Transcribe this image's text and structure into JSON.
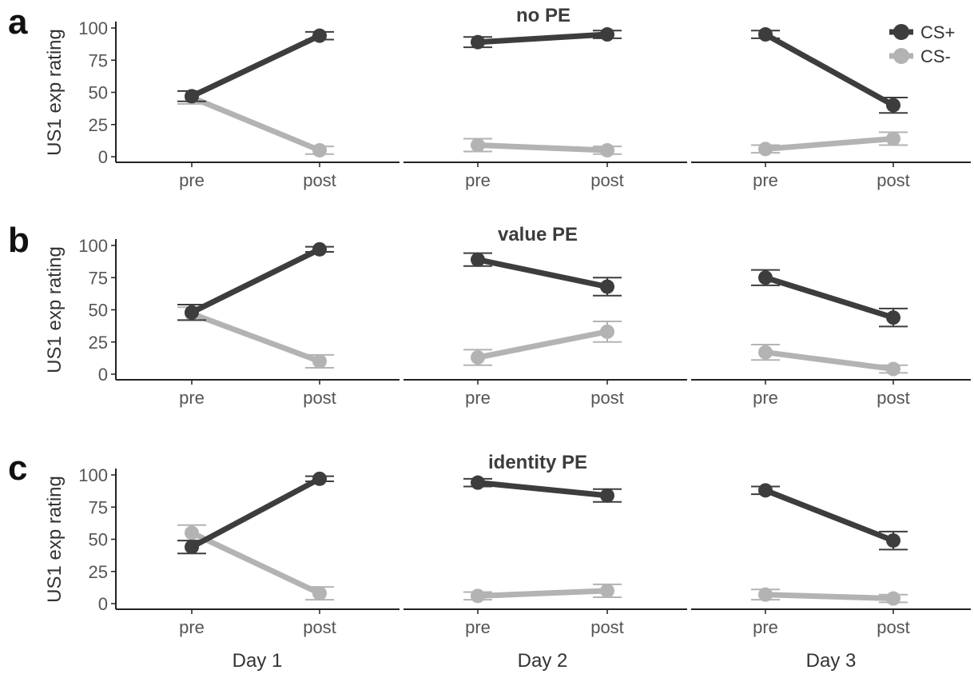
{
  "chart_data": {
    "type": "line",
    "ylabel": "US1 exp rating",
    "ylim": [
      0,
      100
    ],
    "yticks": [
      "0",
      "25",
      "50",
      "75",
      "100"
    ],
    "x": [
      "pre",
      "post"
    ],
    "days": [
      "Day 1",
      "Day 2",
      "Day 3"
    ],
    "legend": {
      "position": "top-right",
      "entries": [
        {
          "name": "CS+",
          "color": "#3d3d3d"
        },
        {
          "name": "CS-",
          "color": "#b3b3b3"
        }
      ]
    },
    "rows": [
      {
        "letter": "a",
        "title": "no PE",
        "panels": [
          {
            "day": "Day 1",
            "series": [
              {
                "name": "CS+",
                "values": [
                  47,
                  94
                ],
                "err": [
                  4,
                  3
                ]
              },
              {
                "name": "CS-",
                "values": [
                  46,
                  5
                ],
                "err": [
                  5,
                  3
                ]
              }
            ]
          },
          {
            "day": "Day 2",
            "series": [
              {
                "name": "CS+",
                "values": [
                  89,
                  95
                ],
                "err": [
                  4,
                  3
                ]
              },
              {
                "name": "CS-",
                "values": [
                  9,
                  5
                ],
                "err": [
                  5,
                  3
                ]
              }
            ]
          },
          {
            "day": "Day 3",
            "series": [
              {
                "name": "CS+",
                "values": [
                  95,
                  40
                ],
                "err": [
                  3,
                  6
                ]
              },
              {
                "name": "CS-",
                "values": [
                  6,
                  14
                ],
                "err": [
                  3,
                  5
                ]
              }
            ]
          }
        ]
      },
      {
        "letter": "b",
        "title": "value PE",
        "panels": [
          {
            "day": "Day 1",
            "series": [
              {
                "name": "CS+",
                "values": [
                  48,
                  97
                ],
                "err": [
                  6,
                  2
                ]
              },
              {
                "name": "CS-",
                "values": [
                  47,
                  10
                ],
                "err": [
                  5,
                  5
                ]
              }
            ]
          },
          {
            "day": "Day 2",
            "series": [
              {
                "name": "CS+",
                "values": [
                  89,
                  68
                ],
                "err": [
                  5,
                  7
                ]
              },
              {
                "name": "CS-",
                "values": [
                  13,
                  33
                ],
                "err": [
                  6,
                  8
                ]
              }
            ]
          },
          {
            "day": "Day 3",
            "series": [
              {
                "name": "CS+",
                "values": [
                  75,
                  44
                ],
                "err": [
                  6,
                  7
                ]
              },
              {
                "name": "CS-",
                "values": [
                  17,
                  4
                ],
                "err": [
                  6,
                  3
                ]
              }
            ]
          }
        ]
      },
      {
        "letter": "c",
        "title": "identity PE",
        "panels": [
          {
            "day": "Day 1",
            "series": [
              {
                "name": "CS+",
                "values": [
                  44,
                  97
                ],
                "err": [
                  5,
                  2
                ]
              },
              {
                "name": "CS-",
                "values": [
                  55,
                  8
                ],
                "err": [
                  6,
                  5
                ]
              }
            ]
          },
          {
            "day": "Day 2",
            "series": [
              {
                "name": "CS+",
                "values": [
                  94,
                  84
                ],
                "err": [
                  3,
                  5
                ]
              },
              {
                "name": "CS-",
                "values": [
                  6,
                  10
                ],
                "err": [
                  3,
                  5
                ]
              }
            ]
          },
          {
            "day": "Day 3",
            "series": [
              {
                "name": "CS+",
                "values": [
                  88,
                  49
                ],
                "err": [
                  3,
                  7
                ]
              },
              {
                "name": "CS-",
                "values": [
                  7,
                  4
                ],
                "err": [
                  4,
                  3
                ]
              }
            ]
          }
        ]
      }
    ]
  }
}
